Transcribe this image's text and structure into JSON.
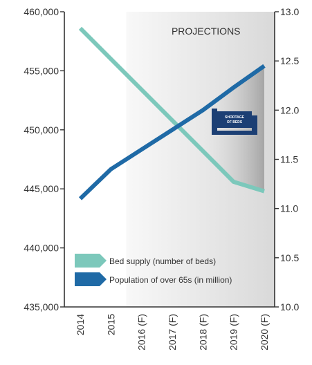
{
  "chart_data": {
    "type": "line",
    "title": "",
    "xlabel": "",
    "ylabel": "",
    "y2label": "",
    "x": [
      "2014",
      "2015",
      "2016 (F)",
      "2017 (F)",
      "2018 (F)",
      "2019 (F)",
      "2020 (F)"
    ],
    "ylim": [
      435000,
      460000
    ],
    "y2lim": [
      10.0,
      13.0
    ],
    "y_ticks": [
      "435,000",
      "440,000",
      "445,000",
      "450,000",
      "455,000",
      "460,000"
    ],
    "y2_ticks": [
      "10.0",
      "10.5",
      "11.0",
      "11.5",
      "12.0",
      "12.5",
      "13.0"
    ],
    "series": [
      {
        "name": "Bed supply (number of beds)",
        "axis": "left",
        "color": "#7cc8bb",
        "values": [
          458600,
          456000,
          453400,
          450800,
          448200,
          445600,
          444800
        ]
      },
      {
        "name": "Population of over 65s (in million)",
        "axis": "right",
        "color": "#1f6aa6",
        "values": [
          11.1,
          11.4,
          11.6,
          11.8,
          12.0,
          12.23,
          12.45
        ]
      }
    ],
    "projection": {
      "label": "PROJECTIONS",
      "start": "2016 (F)",
      "end": "2020 (F)"
    },
    "annotation": {
      "text_line1": "SHORTAGE",
      "text_line2": "OF BEDS",
      "icon": "bed-icon",
      "color": "#1c3f74"
    },
    "grid": false,
    "legend": "bottom-left"
  }
}
